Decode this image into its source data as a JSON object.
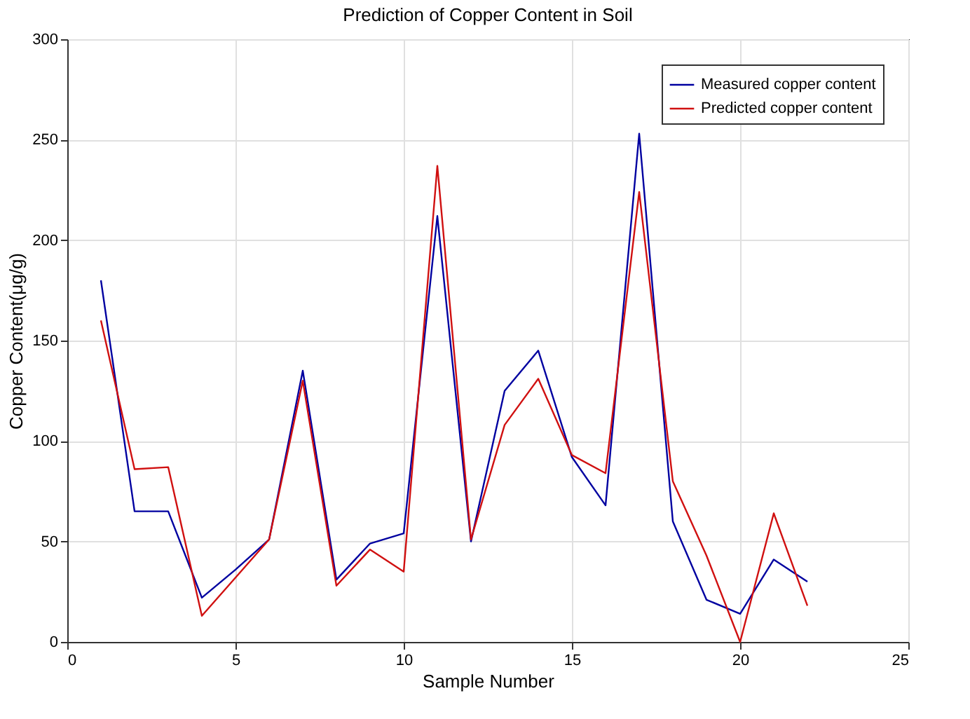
{
  "chart_data": {
    "type": "line",
    "title": "Prediction of Copper Content in Soil",
    "xlabel": "Sample Number",
    "ylabel": "Copper Content(μg/g)",
    "x": [
      1,
      2,
      3,
      4,
      5,
      6,
      7,
      8,
      9,
      10,
      11,
      12,
      13,
      14,
      15,
      16,
      17,
      18,
      19,
      20,
      21,
      22
    ],
    "series": [
      {
        "name": "Measured copper content",
        "color": "#0000a0",
        "values": [
          180,
          65,
          65,
          22,
          36,
          51,
          135,
          31,
          49,
          54,
          212,
          50,
          125,
          145,
          92,
          68,
          253,
          60,
          21,
          14,
          41,
          30
        ]
      },
      {
        "name": "Predicted copper content",
        "color": "#d01010",
        "values": [
          160,
          86,
          87,
          13,
          32,
          51,
          130,
          28,
          46,
          35,
          237,
          51,
          108,
          131,
          93,
          84,
          224,
          80,
          43,
          0,
          64,
          18
        ]
      }
    ],
    "xlim": [
      0,
      25
    ],
    "xticks": [
      0,
      5,
      10,
      15,
      20,
      25
    ],
    "ylim": [
      0,
      300
    ],
    "yticks": [
      0,
      50,
      100,
      150,
      200,
      250,
      300
    ],
    "grid": true,
    "legend": "top right",
    "marker": "none",
    "line_style": "solid"
  }
}
